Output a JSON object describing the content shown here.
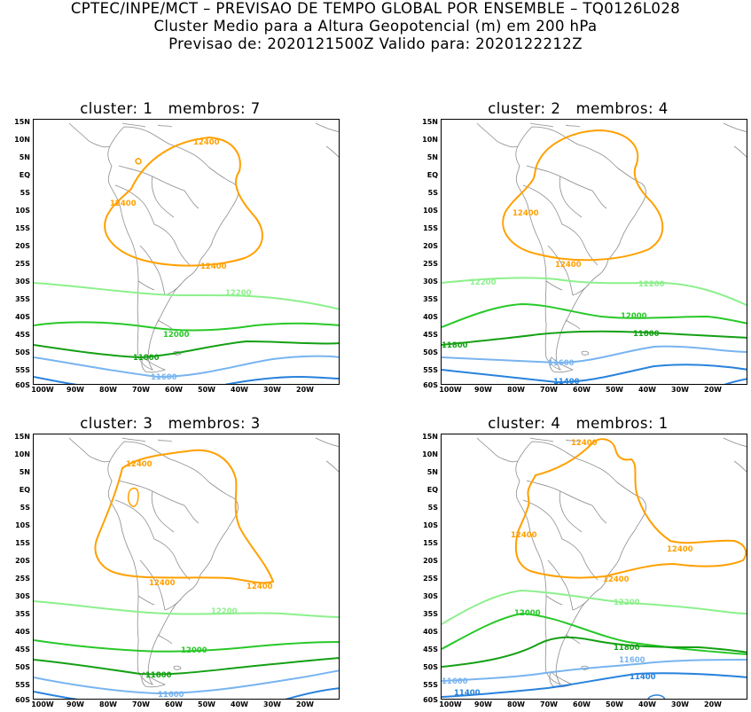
{
  "header": {
    "line1": "CPTEC/INPE/MCT – PREVISAO DE TEMPO GLOBAL POR ENSEMBLE – TQ0126L028",
    "line2": "Cluster Medio para a Altura Geopotencial (m) em 200 hPa",
    "line3": "Previsao de: 2020121500Z   Valido para: 2020122212Z"
  },
  "axes": {
    "y_ticks": [
      "15N",
      "10N",
      "5N",
      "EQ",
      "5S",
      "10S",
      "15S",
      "20S",
      "25S",
      "30S",
      "35S",
      "40S",
      "45S",
      "50S",
      "55S",
      "60S"
    ],
    "x_ticks": [
      "100W",
      "90W",
      "80W",
      "70W",
      "60W",
      "50W",
      "40W",
      "30W",
      "20W"
    ]
  },
  "colors": {
    "c12400": "#ffa000",
    "c12200": "#8cf08c",
    "c12000": "#28c828",
    "c11800": "#14a014",
    "c11600": "#78b4f0",
    "c11400": "#2882dc",
    "land_outline": "#8c8c8c"
  },
  "panels": [
    {
      "title": "cluster: 1   membros: 7",
      "labels": {
        "c12400a": "12400",
        "c12400b": "12400",
        "c12400c": "12400",
        "c12200": "12200",
        "c12000": "12000",
        "c11800": "11800",
        "c11600": "11600"
      }
    },
    {
      "title": "cluster: 2   membros: 4",
      "labels": {
        "c12400a": "12400",
        "c12400b": "12400",
        "c12200a": "12200",
        "c12200b": "12200",
        "c12000": "12000",
        "c11800a": "11800",
        "c11800b": "11800",
        "c11600": "11600",
        "c11400": "11400"
      }
    },
    {
      "title": "cluster: 3   membros: 3",
      "labels": {
        "c12400a": "12400",
        "c12400b": "12400",
        "c12400c": "12400",
        "c12200": "12200",
        "c12000": "12000",
        "c11800": "11800",
        "c11600": "11600"
      }
    },
    {
      "title": "cluster: 4   membros: 1",
      "labels": {
        "c12400a": "12400",
        "c12400b": "12400",
        "c12400c": "12400",
        "c12400d": "12400",
        "c12200": "12200",
        "c12000": "12000",
        "c11800": "11800",
        "c11600a": "11600",
        "c11600b": "11600",
        "c11400a": "11400",
        "c11400b": "11400"
      }
    }
  ]
}
